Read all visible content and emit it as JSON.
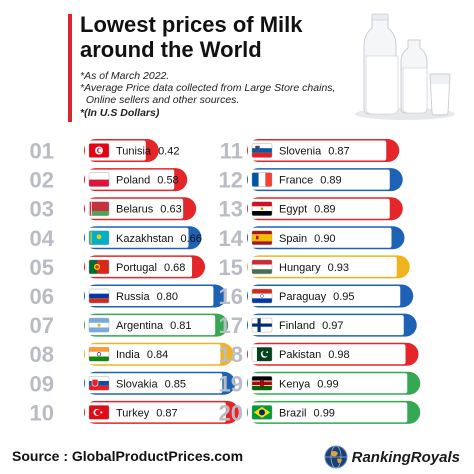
{
  "header": {
    "title_line1": "Lowest prices of Milk",
    "title_line2": "around the World",
    "notes": [
      "*As of March 2022.",
      "*Average Price data collected from Large Store chains,",
      "  Online sellers and other sources.",
      "*(In U.S Dollars)"
    ]
  },
  "chart_data": {
    "type": "bar",
    "title": "Lowest prices of Milk around the World",
    "ylabel": "",
    "xlabel": "",
    "unit": "U.S Dollars",
    "categories": [
      "Tunisia",
      "Poland",
      "Belarus",
      "Kazakhstan",
      "Portugal",
      "Russia",
      "Argentina",
      "India",
      "Slovakia",
      "Turkey",
      "Slovenia",
      "France",
      "Egypt",
      "Spain",
      "Hungary",
      "Paraguay",
      "Finland",
      "Pakistan",
      "Kenya",
      "Brazil"
    ],
    "ranks": [
      "01",
      "02",
      "03",
      "04",
      "05",
      "06",
      "07",
      "08",
      "09",
      "10",
      "11",
      "12",
      "13",
      "14",
      "15",
      "16",
      "17",
      "18",
      "19",
      "20"
    ],
    "values": [
      0.42,
      0.58,
      0.63,
      0.66,
      0.68,
      0.8,
      0.81,
      0.84,
      0.85,
      0.87,
      0.87,
      0.89,
      0.89,
      0.9,
      0.93,
      0.95,
      0.97,
      0.98,
      0.99,
      0.99
    ],
    "bar_colors": [
      "#e4262a",
      "#e4262a",
      "#e4262a",
      "#1e62b6",
      "#e4262a",
      "#1e62b6",
      "#34a853",
      "#f2b41e",
      "#1e62b6",
      "#e4262a",
      "#e4262a",
      "#1e62b6",
      "#e4262a",
      "#1e62b6",
      "#f2b41e",
      "#1e62b6",
      "#1e62b6",
      "#e4262a",
      "#34a853",
      "#34a853"
    ],
    "flags": [
      "tunisia-flag-icon",
      "poland-flag-icon",
      "belarus-flag-icon",
      "kazakhstan-flag-icon",
      "portugal-flag-icon",
      "russia-flag-icon",
      "argentina-flag-icon",
      "india-flag-icon",
      "slovakia-flag-icon",
      "turkey-flag-icon",
      "slovenia-flag-icon",
      "france-flag-icon",
      "egypt-flag-icon",
      "spain-flag-icon",
      "hungary-flag-icon",
      "paraguay-flag-icon",
      "finland-flag-icon",
      "pakistan-flag-icon",
      "kenya-flag-icon",
      "brazil-flag-icon"
    ]
  },
  "footer": {
    "source": "Source : GlobalProductPrices.com",
    "brand": "RankingRoyals"
  },
  "colors": {
    "accent": "#d7262e",
    "rank_number": "#b9bcc4",
    "red": "#e4262a",
    "blue": "#1e62b6",
    "green": "#34a853",
    "yellow": "#f2b41e"
  }
}
